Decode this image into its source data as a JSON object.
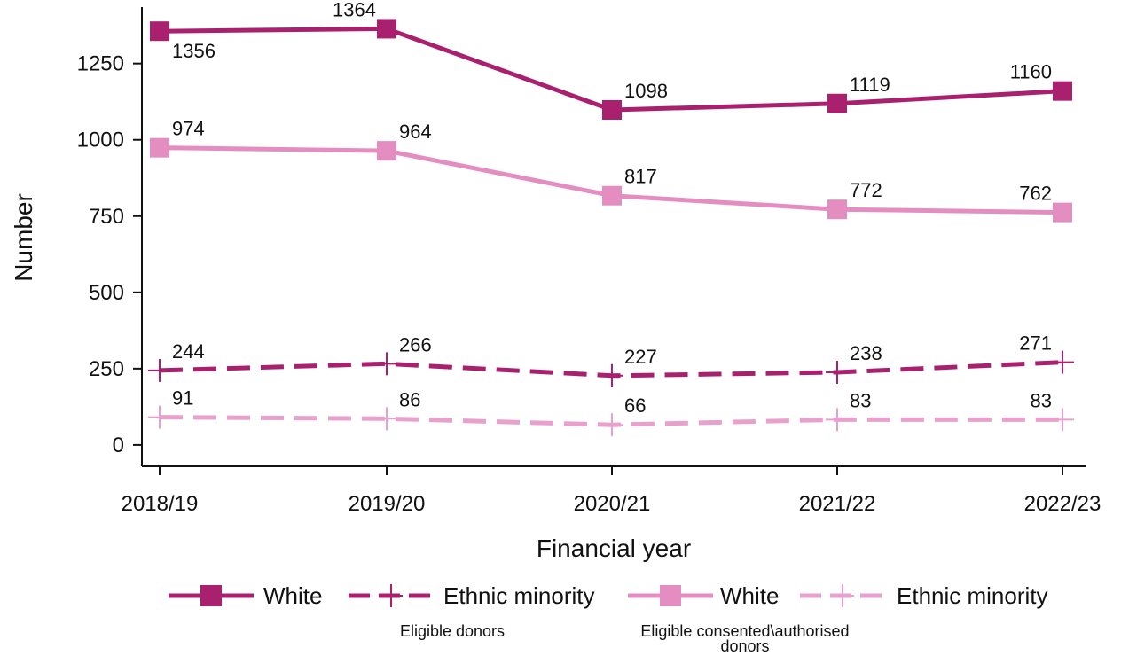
{
  "chart_data": {
    "type": "line",
    "xlabel": "Financial year",
    "ylabel": "Number",
    "categories": [
      "2018/19",
      "2019/20",
      "2020/21",
      "2021/22",
      "2022/23"
    ],
    "ylim": [
      -70,
      1435
    ],
    "yticks": [
      0,
      250,
      500,
      750,
      1000,
      1250
    ],
    "grid": false,
    "legend_position": "bottom",
    "series": [
      {
        "name": "White",
        "group": "Eligible donors",
        "marker": "square",
        "line": "solid",
        "color": "#A8206E",
        "values": [
          1356,
          1364,
          1098,
          1119,
          1160
        ],
        "label_pos": [
          "below",
          "above-left",
          "above-right",
          "above-right",
          "above-left"
        ]
      },
      {
        "name": "Ethnic minority",
        "group": "Eligible donors",
        "marker": "plus",
        "line": "dashed",
        "color": "#A8206E",
        "values": [
          244,
          266,
          227,
          238,
          271
        ],
        "label_pos": [
          "above-right",
          "above-right",
          "above-right",
          "above-right",
          "above-left"
        ]
      },
      {
        "name": "White",
        "group": "Eligible consented\\authorised donors",
        "marker": "square",
        "line": "solid",
        "color": "#E48DC0",
        "values": [
          974,
          964,
          817,
          772,
          762
        ],
        "label_pos": [
          "above-right",
          "above-right",
          "above-right",
          "above-right",
          "above-left"
        ]
      },
      {
        "name": "Ethnic minority",
        "group": "Eligible consented\\authorised donors",
        "marker": "plus",
        "line": "dashed",
        "color": "#E8A0CC",
        "values": [
          91,
          86,
          66,
          83,
          83
        ],
        "label_pos": [
          "above-right",
          "above-right",
          "above-right",
          "above-right",
          "above-left"
        ]
      }
    ],
    "legend_groups": [
      "Eligible donors",
      "Eligible consented\\authorised donors"
    ]
  }
}
